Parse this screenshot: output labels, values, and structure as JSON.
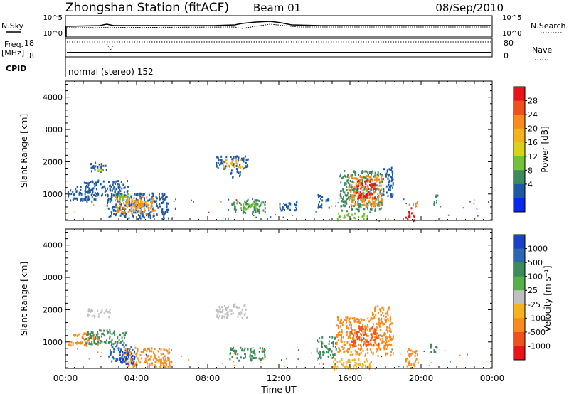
{
  "header": {
    "station": "Zhongshan Station (fitACF)",
    "beam": "Beam 01",
    "date": "08/Sep/2010"
  },
  "status": {
    "nsky_label": "N.Sky",
    "nsearch_label": "N.Search",
    "nsky_ticks": [
      "10^5",
      "10^0"
    ],
    "nsearch_ticks": [
      "10^5",
      "10^0"
    ],
    "freq_label_1": "Freq.",
    "freq_label_2": "[MHz]",
    "nave_label": "Nave",
    "freq_ticks": [
      "18",
      "8"
    ],
    "nave_ticks": [
      "80",
      "0"
    ],
    "cpid_label": "CPID",
    "cpid_text": "normal (stereo) 152"
  },
  "chart_data": [
    {
      "type": "heatmap",
      "name": "power",
      "ylabel": "Slant Range [km]",
      "y_ticks": [
        "4000",
        "3000",
        "2000",
        "1000"
      ],
      "ylim": [
        180,
        4500
      ],
      "xlim_hours": [
        0,
        24
      ],
      "x_tick_labels": [
        "00:00",
        "04:00",
        "08:00",
        "12:00",
        "16:00",
        "20:00",
        "00:00"
      ],
      "colorbar_label": "Power [dB]",
      "colorbar_ticks": [
        "28",
        "24",
        "20",
        "16",
        "12",
        "8",
        "4"
      ],
      "colorbar_colors": [
        "#e8141a",
        "#f0501b",
        "#f98a1c",
        "#f5b21e",
        "#d7d31a",
        "#74c23a",
        "#3f8a5d",
        "#1e59a8",
        "#0a28ee"
      ],
      "patches": [
        {
          "x0": 0.1,
          "x1": 1.8,
          "y0": 800,
          "y1": 1250,
          "c": "#1e59a8"
        },
        {
          "x0": 1.3,
          "x1": 2.3,
          "y0": 1700,
          "y1": 2000,
          "c": "#1e59a8"
        },
        {
          "x0": 1.8,
          "x1": 2.2,
          "y0": 1750,
          "y1": 1950,
          "c": "#d7d31a"
        },
        {
          "x0": 1.0,
          "x1": 3.5,
          "y0": 950,
          "y1": 1450,
          "c": "#1e59a8"
        },
        {
          "x0": 2.3,
          "x1": 5.8,
          "y0": 250,
          "y1": 1050,
          "c": "#1e59a8"
        },
        {
          "x0": 2.8,
          "x1": 5.0,
          "y0": 400,
          "y1": 950,
          "c": "#f98a1c"
        },
        {
          "x0": 3.4,
          "x1": 4.6,
          "y0": 600,
          "y1": 850,
          "c": "#f5b21e"
        },
        {
          "x0": 2.6,
          "x1": 3.6,
          "y0": 800,
          "y1": 1050,
          "c": "#74c23a"
        },
        {
          "x0": 8.4,
          "x1": 10.3,
          "y0": 1800,
          "y1": 2200,
          "c": "#1e59a8"
        },
        {
          "x0": 8.8,
          "x1": 10.0,
          "y0": 1850,
          "y1": 2100,
          "c": "#f5b21e"
        },
        {
          "x0": 9.2,
          "x1": 9.8,
          "y0": 1550,
          "y1": 1800,
          "c": "#1e59a8"
        },
        {
          "x0": 9.3,
          "x1": 11.2,
          "y0": 400,
          "y1": 850,
          "c": "#3f8a5d"
        },
        {
          "x0": 9.6,
          "x1": 11.0,
          "y0": 550,
          "y1": 750,
          "c": "#74c23a"
        },
        {
          "x0": 14.1,
          "x1": 14.8,
          "y0": 550,
          "y1": 1000,
          "c": "#1e59a8"
        },
        {
          "x0": 15.4,
          "x1": 17.8,
          "y0": 500,
          "y1": 1750,
          "c": "#3f8a5d"
        },
        {
          "x0": 15.9,
          "x1": 17.8,
          "y0": 650,
          "y1": 1600,
          "c": "#f98a1c"
        },
        {
          "x0": 16.3,
          "x1": 17.4,
          "y0": 900,
          "y1": 1500,
          "c": "#e8141a"
        },
        {
          "x0": 17.8,
          "x1": 18.4,
          "y0": 850,
          "y1": 1900,
          "c": "#1e59a8"
        },
        {
          "x0": 15.2,
          "x1": 17.0,
          "y0": 250,
          "y1": 450,
          "c": "#74c23a"
        },
        {
          "x0": 19.1,
          "x1": 19.6,
          "y0": 180,
          "y1": 600,
          "c": "#e8141a"
        },
        {
          "x0": 19.3,
          "x1": 19.8,
          "y0": 600,
          "y1": 800,
          "c": "#f98a1c"
        },
        {
          "x0": 20.6,
          "x1": 20.9,
          "y0": 700,
          "y1": 1000,
          "c": "#3f8a5d"
        },
        {
          "x0": 12.0,
          "x1": 13.0,
          "y0": 500,
          "y1": 800,
          "c": "#1e59a8"
        }
      ]
    },
    {
      "type": "heatmap",
      "name": "velocity",
      "ylabel": "Slant Range [km]",
      "y_ticks": [
        "4000",
        "3000",
        "2000",
        "1000"
      ],
      "ylim": [
        180,
        4500
      ],
      "xlim_hours": [
        0,
        24
      ],
      "x_tick_labels": [
        "00:00",
        "04:00",
        "08:00",
        "12:00",
        "16:00",
        "20:00",
        "00:00"
      ],
      "xlabel": "Time UT",
      "colorbar_label": "Velocity [m s⁻¹]",
      "colorbar_ticks": [
        "1000",
        "500",
        "100",
        "25",
        "-25",
        "-100",
        "-500",
        "-1000"
      ],
      "colorbar_colors": [
        "#1a41c8",
        "#2a68b0",
        "#3f8a5d",
        "#56b04a",
        "#c0c0c0",
        "#f5b21e",
        "#f98a1c",
        "#f0501b",
        "#e8141a"
      ],
      "patches": [
        {
          "x0": 0.1,
          "x1": 1.9,
          "y0": 900,
          "y1": 1300,
          "c": "#f98a1c"
        },
        {
          "x0": 1.2,
          "x1": 2.6,
          "y0": 1800,
          "y1": 2050,
          "c": "#c0c0c0"
        },
        {
          "x0": 1.0,
          "x1": 3.4,
          "y0": 950,
          "y1": 1400,
          "c": "#3f8a5d"
        },
        {
          "x0": 2.4,
          "x1": 3.8,
          "y0": 400,
          "y1": 950,
          "c": "#2a68b0"
        },
        {
          "x0": 3.2,
          "x1": 5.8,
          "y0": 250,
          "y1": 850,
          "c": "#f98a1c"
        },
        {
          "x0": 3.0,
          "x1": 3.9,
          "y0": 350,
          "y1": 750,
          "c": "#1a41c8"
        },
        {
          "x0": 8.4,
          "x1": 10.2,
          "y0": 1750,
          "y1": 2200,
          "c": "#c0c0c0"
        },
        {
          "x0": 9.2,
          "x1": 11.2,
          "y0": 450,
          "y1": 850,
          "c": "#3f8a5d"
        },
        {
          "x0": 14.1,
          "x1": 15.2,
          "y0": 500,
          "y1": 1200,
          "c": "#3f8a5d"
        },
        {
          "x0": 15.2,
          "x1": 18.4,
          "y0": 600,
          "y1": 1800,
          "c": "#f98a1c"
        },
        {
          "x0": 16.0,
          "x1": 17.6,
          "y0": 900,
          "y1": 1500,
          "c": "#f0501b"
        },
        {
          "x0": 15.0,
          "x1": 17.2,
          "y0": 180,
          "y1": 500,
          "c": "#f5b21e"
        },
        {
          "x0": 17.2,
          "x1": 18.2,
          "y0": 1750,
          "y1": 2150,
          "c": "#f98a1c"
        },
        {
          "x0": 19.1,
          "x1": 19.8,
          "y0": 180,
          "y1": 800,
          "c": "#f98a1c"
        },
        {
          "x0": 20.5,
          "x1": 20.9,
          "y0": 700,
          "y1": 1000,
          "c": "#3f8a5d"
        },
        {
          "x0": 5.0,
          "x1": 6.0,
          "y0": 250,
          "y1": 500,
          "c": "#f98a1c"
        }
      ]
    }
  ]
}
